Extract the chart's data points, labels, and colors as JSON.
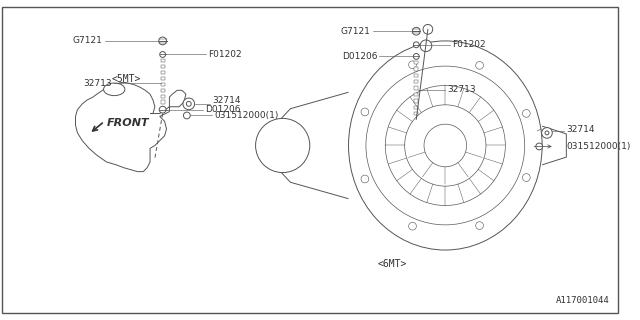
{
  "background_color": "#ffffff",
  "border_color": "#555555",
  "diagram_id": "A117001044",
  "line_color": "#555555",
  "text_color": "#333333",
  "left_label": "<5MT>",
  "right_label": "<6MT>",
  "front_label": "FRONT",
  "parts": {
    "G7121": "G7121",
    "F01202": "F01202",
    "D01206": "D01206",
    "32713": "32713",
    "32714": "32714",
    "031512000": "031512000(1)"
  },
  "font_size": 6.5
}
